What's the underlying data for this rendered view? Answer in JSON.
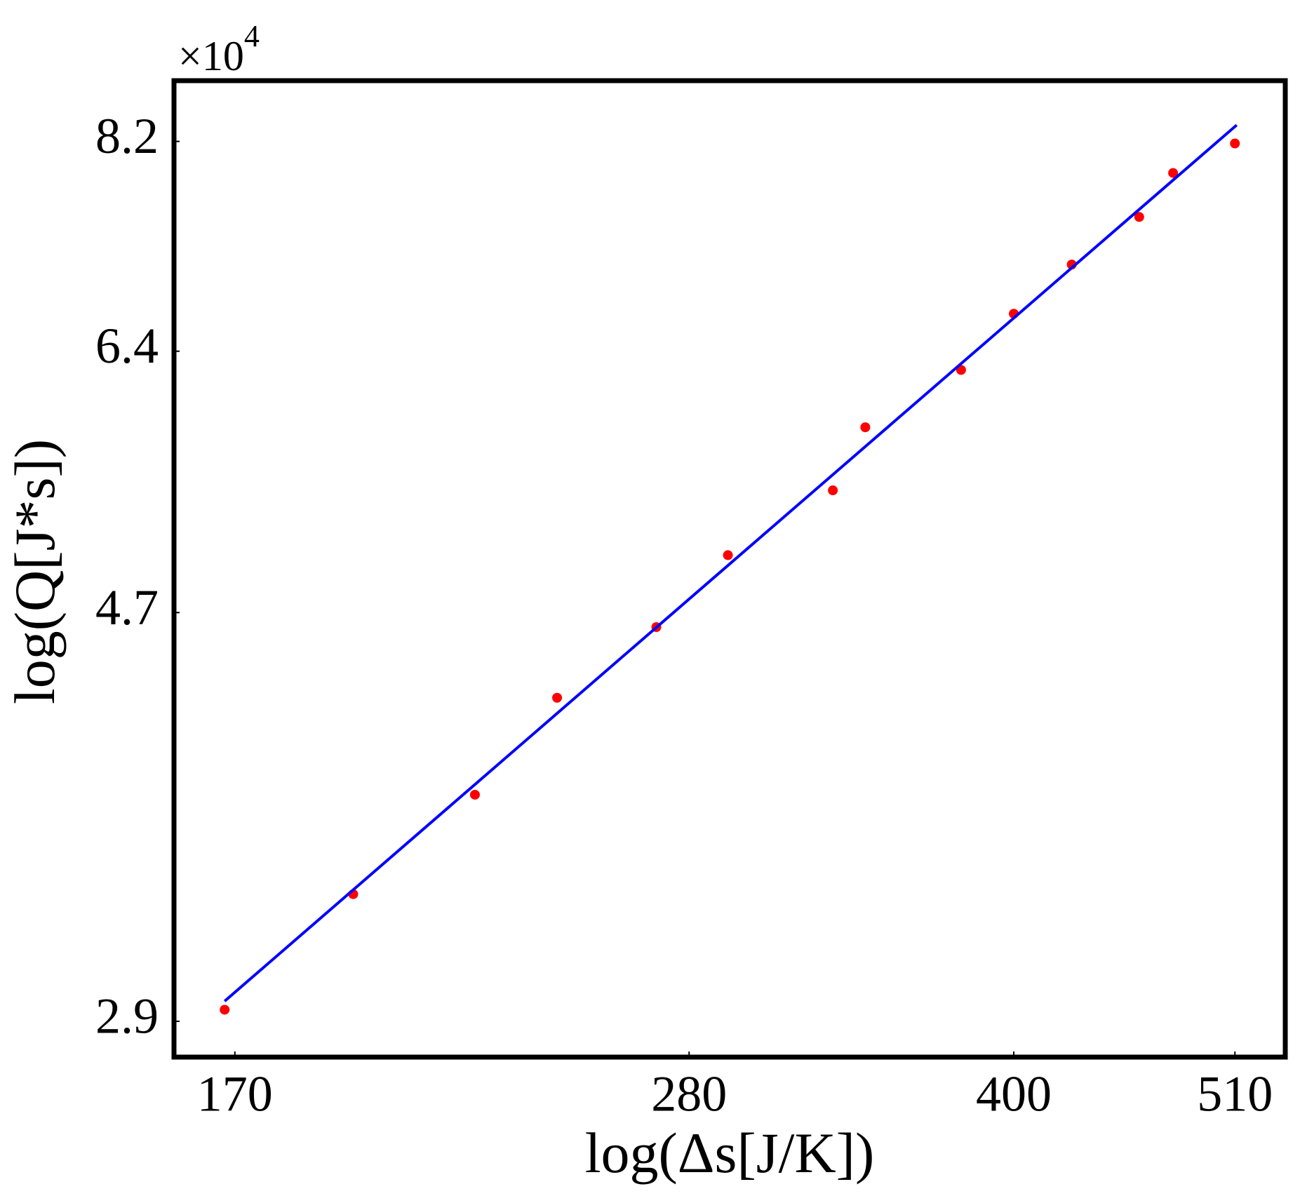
{
  "chart_data": {
    "type": "scatter",
    "xlabel": "log(Δs[J/K])",
    "ylabel": "log(Q[J*s])",
    "y_offset_text": {
      "base": "×10",
      "exponent": "4"
    },
    "xscale": "log",
    "yscale": "log",
    "xlim": [
      159,
      539
    ],
    "ylim": [
      2.78,
      8.81
    ],
    "xticks": [
      170,
      280,
      400,
      510
    ],
    "yticks": [
      2.9,
      4.7,
      6.4,
      8.2
    ],
    "grid": false,
    "series": [
      {
        "type": "scatter",
        "color": "#ff0000",
        "x": [
          168.1,
          193.6,
          221.3,
          242.2,
          270.1,
          292.2,
          327.9,
          339.8,
          377.5,
          400,
          426.3,
          459.1,
          476.5,
          510
        ],
        "values": [
          2.94,
          3.37,
          3.79,
          4.25,
          4.62,
          5.03,
          5.43,
          5.85,
          6.26,
          6.69,
          7.09,
          7.5,
          7.9,
          8.18
        ]
      },
      {
        "type": "line",
        "color": "#0000ff",
        "x": [
          168.1,
          511
        ],
        "values": [
          2.97,
          8.36
        ]
      }
    ]
  }
}
